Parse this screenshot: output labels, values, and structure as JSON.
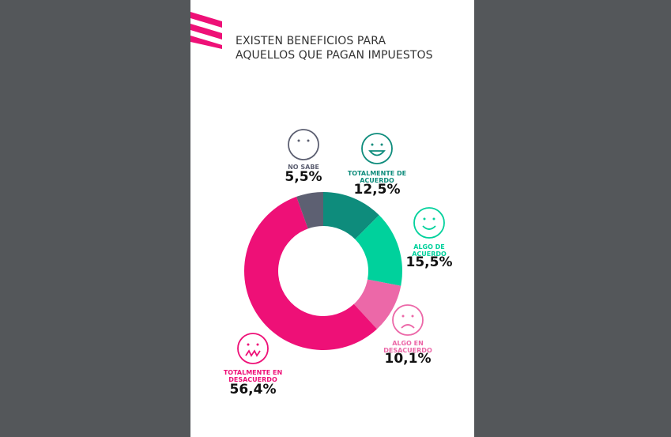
{
  "chart_data": {
    "type": "donut",
    "title": [
      "EXISTEN BENEFICIOS PARA",
      "AQUELLOS QUE PAGAN IMPUESTOS"
    ],
    "categories": [
      "TOTALMENTE DE ACUERDO",
      "ALGO DE ACUERDO",
      "ALGO EN DESACUERDO",
      "TOTALMENTE EN DESACUERDO",
      "NO SABE"
    ],
    "values": [
      12.5,
      15.5,
      10.1,
      56.4,
      5.5
    ],
    "value_labels": [
      "12,5%",
      "15,5%",
      "10,1%",
      "56,4%",
      "5,5%"
    ],
    "colors": [
      "#0e8c7c",
      "#00d19c",
      "#ec68a8",
      "#ee1077",
      "#5d6072"
    ]
  }
}
